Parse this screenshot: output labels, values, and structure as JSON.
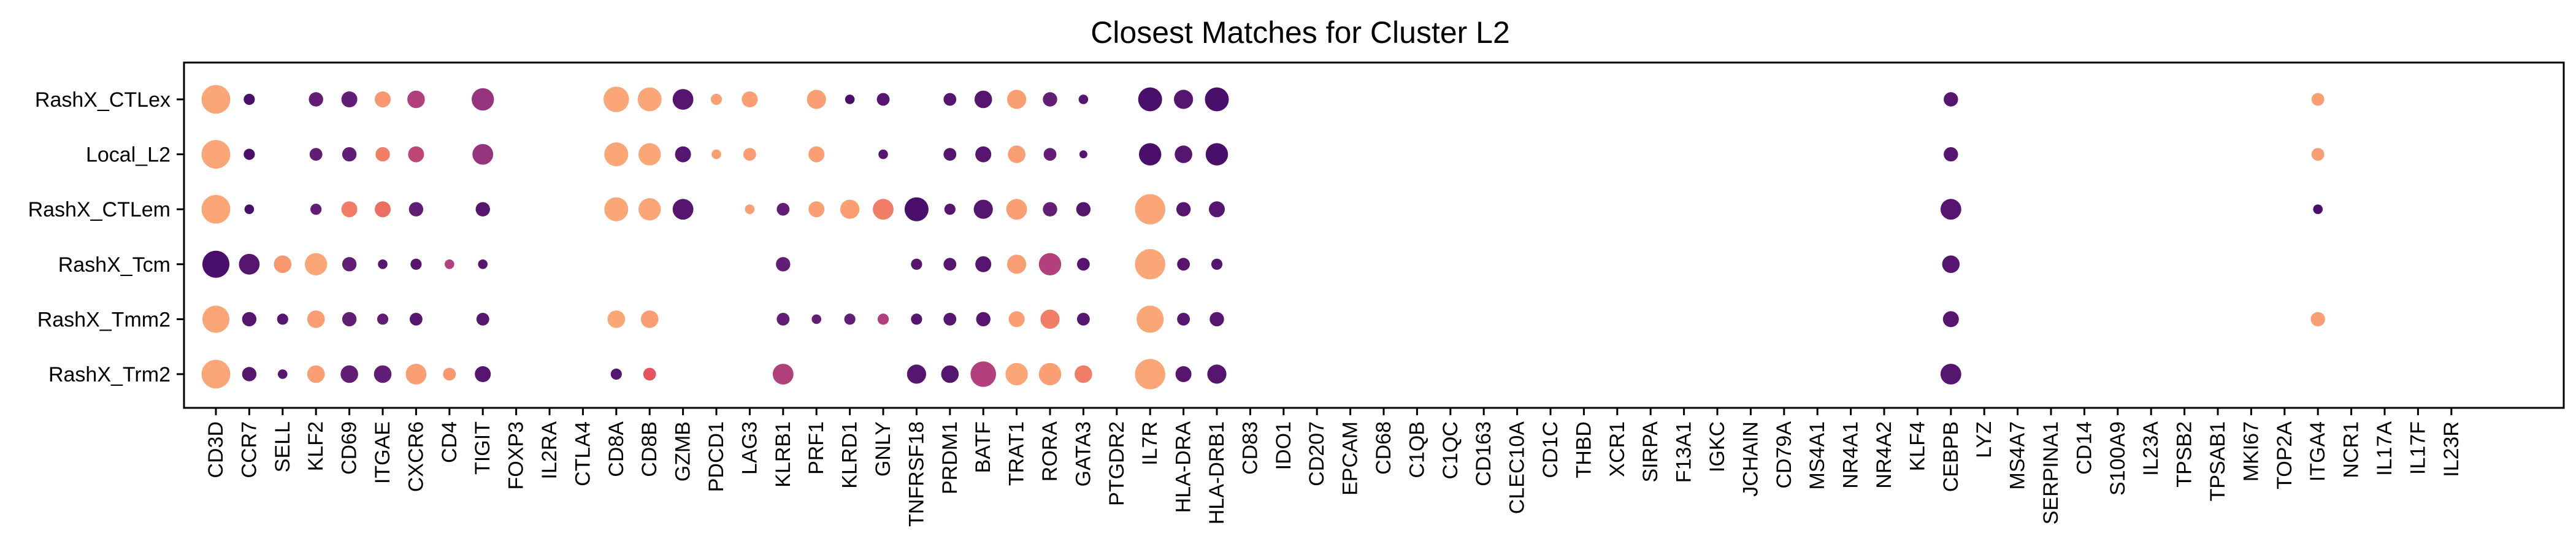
{
  "chart_data": {
    "type": "dotplot",
    "title": "Closest Matches for Cluster L2",
    "xlabel": "",
    "ylabel": "",
    "rows": [
      "RashX_CTLex",
      "Local_L2",
      "RashX_CTLem",
      "RashX_Tcm",
      "RashX_Tmm2",
      "RashX_Trm2"
    ],
    "columns": [
      "CD3D",
      "CCR7",
      "SELL",
      "KLF2",
      "CD69",
      "ITGAE",
      "CXCR6",
      "CD4",
      "TIGIT",
      "FOXP3",
      "IL2RA",
      "CTLA4",
      "CD8A",
      "CD8B",
      "GZMB",
      "PDCD1",
      "LAG3",
      "KLRB1",
      "PRF1",
      "KLRD1",
      "GNLY",
      "TNFRSF18",
      "PRDM1",
      "BATF",
      "TRAT1",
      "RORA",
      "GATA3",
      "PTGDR2",
      "IL7R",
      "HLA-DRA",
      "HLA-DRB1",
      "CD83",
      "IDO1",
      "CD207",
      "EPCAM",
      "CD68",
      "C1QB",
      "C1QC",
      "CD163",
      "CLEC10A",
      "CD1C",
      "THBD",
      "XCR1",
      "SIRPA",
      "F13A1",
      "IGKC",
      "JCHAIN",
      "CD79A",
      "MS4A1",
      "NR4A1",
      "NR4A2",
      "KLF4",
      "CEBPB",
      "LYZ",
      "MS4A7",
      "SERPINA1",
      "CD14",
      "S100A9",
      "IL23A",
      "TPSB2",
      "TPSAB1",
      "MKI67",
      "TOP2A",
      "ITGA4",
      "NCR1",
      "IL17A",
      "IL17F",
      "IL23R"
    ],
    "size_scale": "fraction of cells expressing (relative dot size, 0-1)",
    "color_scale": "mean expression (0 = dark purple, 1 = light orange)",
    "colormap": [
      "#4a0f6b",
      "#7a2a7e",
      "#b2407c",
      "#e5545e",
      "#f58a68",
      "#fba676"
    ],
    "points": [
      {
        "row": "RashX_CTLex",
        "gene": "CD3D",
        "size": 0.9,
        "color": 1.0
      },
      {
        "row": "RashX_CTLex",
        "gene": "CCR7",
        "size": 0.35,
        "color": 0.0
      },
      {
        "row": "RashX_CTLex",
        "gene": "KLF2",
        "size": 0.45,
        "color": 0.1
      },
      {
        "row": "RashX_CTLex",
        "gene": "CD69",
        "size": 0.5,
        "color": 0.1
      },
      {
        "row": "RashX_CTLex",
        "gene": "ITGAE",
        "size": 0.5,
        "color": 0.9
      },
      {
        "row": "RashX_CTLex",
        "gene": "CXCR6",
        "size": 0.55,
        "color": 0.4
      },
      {
        "row": "RashX_CTLex",
        "gene": "TIGIT",
        "size": 0.7,
        "color": 0.3
      },
      {
        "row": "RashX_CTLex",
        "gene": "CD8A",
        "size": 0.8,
        "color": 1.0
      },
      {
        "row": "RashX_CTLex",
        "gene": "CD8B",
        "size": 0.75,
        "color": 1.0
      },
      {
        "row": "RashX_CTLex",
        "gene": "GZMB",
        "size": 0.65,
        "color": 0.05
      },
      {
        "row": "RashX_CTLex",
        "gene": "PDCD1",
        "size": 0.35,
        "color": 0.95
      },
      {
        "row": "RashX_CTLex",
        "gene": "LAG3",
        "size": 0.5,
        "color": 0.95
      },
      {
        "row": "RashX_CTLex",
        "gene": "PRF1",
        "size": 0.6,
        "color": 0.95
      },
      {
        "row": "RashX_CTLex",
        "gene": "KLRD1",
        "size": 0.3,
        "color": 0.0
      },
      {
        "row": "RashX_CTLex",
        "gene": "GNLY",
        "size": 0.4,
        "color": 0.05
      },
      {
        "row": "RashX_CTLex",
        "gene": "PRDM1",
        "size": 0.4,
        "color": 0.05
      },
      {
        "row": "RashX_CTLex",
        "gene": "BATF",
        "size": 0.55,
        "color": 0.05
      },
      {
        "row": "RashX_CTLex",
        "gene": "TRAT1",
        "size": 0.6,
        "color": 0.95
      },
      {
        "row": "RashX_CTLex",
        "gene": "RORA",
        "size": 0.45,
        "color": 0.1
      },
      {
        "row": "RashX_CTLex",
        "gene": "GATA3",
        "size": 0.3,
        "color": 0.05
      },
      {
        "row": "RashX_CTLex",
        "gene": "IL7R",
        "size": 0.75,
        "color": 0.0
      },
      {
        "row": "RashX_CTLex",
        "gene": "HLA-DRA",
        "size": 0.6,
        "color": 0.05
      },
      {
        "row": "RashX_CTLex",
        "gene": "HLA-DRB1",
        "size": 0.75,
        "color": 0.0
      },
      {
        "row": "RashX_CTLex",
        "gene": "CEBPB",
        "size": 0.45,
        "color": 0.05
      },
      {
        "row": "RashX_CTLex",
        "gene": "ITGA4",
        "size": 0.4,
        "color": 0.95
      },
      {
        "row": "Local_L2",
        "gene": "CD3D",
        "size": 0.9,
        "color": 1.0
      },
      {
        "row": "Local_L2",
        "gene": "CCR7",
        "size": 0.35,
        "color": 0.0
      },
      {
        "row": "Local_L2",
        "gene": "KLF2",
        "size": 0.4,
        "color": 0.1
      },
      {
        "row": "Local_L2",
        "gene": "CD69",
        "size": 0.45,
        "color": 0.1
      },
      {
        "row": "Local_L2",
        "gene": "ITGAE",
        "size": 0.45,
        "color": 0.75
      },
      {
        "row": "Local_L2",
        "gene": "CXCR6",
        "size": 0.5,
        "color": 0.45
      },
      {
        "row": "Local_L2",
        "gene": "TIGIT",
        "size": 0.65,
        "color": 0.3
      },
      {
        "row": "Local_L2",
        "gene": "CD8A",
        "size": 0.75,
        "color": 1.0
      },
      {
        "row": "Local_L2",
        "gene": "CD8B",
        "size": 0.7,
        "color": 1.0
      },
      {
        "row": "Local_L2",
        "gene": "GZMB",
        "size": 0.5,
        "color": 0.05
      },
      {
        "row": "Local_L2",
        "gene": "PDCD1",
        "size": 0.3,
        "color": 0.95
      },
      {
        "row": "Local_L2",
        "gene": "LAG3",
        "size": 0.4,
        "color": 0.95
      },
      {
        "row": "Local_L2",
        "gene": "PRF1",
        "size": 0.5,
        "color": 0.95
      },
      {
        "row": "Local_L2",
        "gene": "GNLY",
        "size": 0.3,
        "color": 0.05
      },
      {
        "row": "Local_L2",
        "gene": "PRDM1",
        "size": 0.4,
        "color": 0.05
      },
      {
        "row": "Local_L2",
        "gene": "BATF",
        "size": 0.5,
        "color": 0.05
      },
      {
        "row": "Local_L2",
        "gene": "TRAT1",
        "size": 0.55,
        "color": 0.95
      },
      {
        "row": "Local_L2",
        "gene": "RORA",
        "size": 0.4,
        "color": 0.1
      },
      {
        "row": "Local_L2",
        "gene": "GATA3",
        "size": 0.25,
        "color": 0.05
      },
      {
        "row": "Local_L2",
        "gene": "IL7R",
        "size": 0.7,
        "color": 0.0
      },
      {
        "row": "Local_L2",
        "gene": "HLA-DRA",
        "size": 0.55,
        "color": 0.05
      },
      {
        "row": "Local_L2",
        "gene": "HLA-DRB1",
        "size": 0.7,
        "color": 0.0
      },
      {
        "row": "Local_L2",
        "gene": "CEBPB",
        "size": 0.45,
        "color": 0.05
      },
      {
        "row": "Local_L2",
        "gene": "ITGA4",
        "size": 0.4,
        "color": 0.95
      },
      {
        "row": "RashX_CTLem",
        "gene": "CD3D",
        "size": 0.9,
        "color": 1.0
      },
      {
        "row": "RashX_CTLem",
        "gene": "CCR7",
        "size": 0.3,
        "color": 0.0
      },
      {
        "row": "RashX_CTLem",
        "gene": "KLF2",
        "size": 0.35,
        "color": 0.1
      },
      {
        "row": "RashX_CTLem",
        "gene": "CD69",
        "size": 0.5,
        "color": 0.75
      },
      {
        "row": "RashX_CTLem",
        "gene": "ITGAE",
        "size": 0.5,
        "color": 0.7
      },
      {
        "row": "RashX_CTLem",
        "gene": "CXCR6",
        "size": 0.45,
        "color": 0.1
      },
      {
        "row": "RashX_CTLem",
        "gene": "TIGIT",
        "size": 0.45,
        "color": 0.05
      },
      {
        "row": "RashX_CTLem",
        "gene": "CD8A",
        "size": 0.75,
        "color": 1.0
      },
      {
        "row": "RashX_CTLem",
        "gene": "CD8B",
        "size": 0.7,
        "color": 1.0
      },
      {
        "row": "RashX_CTLem",
        "gene": "GZMB",
        "size": 0.65,
        "color": 0.05
      },
      {
        "row": "RashX_CTLem",
        "gene": "LAG3",
        "size": 0.3,
        "color": 0.95
      },
      {
        "row": "RashX_CTLem",
        "gene": "KLRB1",
        "size": 0.4,
        "color": 0.1
      },
      {
        "row": "RashX_CTLem",
        "gene": "PRF1",
        "size": 0.5,
        "color": 0.95
      },
      {
        "row": "RashX_CTLem",
        "gene": "KLRD1",
        "size": 0.6,
        "color": 0.95
      },
      {
        "row": "RashX_CTLem",
        "gene": "GNLY",
        "size": 0.65,
        "color": 0.75
      },
      {
        "row": "RashX_CTLem",
        "gene": "TNFRSF18",
        "size": 0.75,
        "color": 0.0
      },
      {
        "row": "RashX_CTLem",
        "gene": "PRDM1",
        "size": 0.35,
        "color": 0.05
      },
      {
        "row": "RashX_CTLem",
        "gene": "BATF",
        "size": 0.6,
        "color": 0.05
      },
      {
        "row": "RashX_CTLem",
        "gene": "TRAT1",
        "size": 0.65,
        "color": 0.95
      },
      {
        "row": "RashX_CTLem",
        "gene": "RORA",
        "size": 0.45,
        "color": 0.1
      },
      {
        "row": "RashX_CTLem",
        "gene": "GATA3",
        "size": 0.45,
        "color": 0.05
      },
      {
        "row": "RashX_CTLem",
        "gene": "IL7R",
        "size": 0.95,
        "color": 1.0
      },
      {
        "row": "RashX_CTLem",
        "gene": "HLA-DRA",
        "size": 0.45,
        "color": 0.05
      },
      {
        "row": "RashX_CTLem",
        "gene": "HLA-DRB1",
        "size": 0.5,
        "color": 0.05
      },
      {
        "row": "RashX_CTLem",
        "gene": "CEBPB",
        "size": 0.65,
        "color": 0.05
      },
      {
        "row": "RashX_CTLem",
        "gene": "ITGA4",
        "size": 0.3,
        "color": 0.0
      },
      {
        "row": "RashX_Tcm",
        "gene": "CD3D",
        "size": 0.85,
        "color": 0.0
      },
      {
        "row": "RashX_Tcm",
        "gene": "CCR7",
        "size": 0.65,
        "color": 0.05
      },
      {
        "row": "RashX_Tcm",
        "gene": "SELL",
        "size": 0.55,
        "color": 0.9
      },
      {
        "row": "RashX_Tcm",
        "gene": "KLF2",
        "size": 0.7,
        "color": 1.0
      },
      {
        "row": "RashX_Tcm",
        "gene": "CD69",
        "size": 0.45,
        "color": 0.1
      },
      {
        "row": "RashX_Tcm",
        "gene": "ITGAE",
        "size": 0.3,
        "color": 0.05
      },
      {
        "row": "RashX_Tcm",
        "gene": "CXCR6",
        "size": 0.35,
        "color": 0.05
      },
      {
        "row": "RashX_Tcm",
        "gene": "CD4",
        "size": 0.3,
        "color": 0.4
      },
      {
        "row": "RashX_Tcm",
        "gene": "TIGIT",
        "size": 0.3,
        "color": 0.05
      },
      {
        "row": "RashX_Tcm",
        "gene": "KLRB1",
        "size": 0.45,
        "color": 0.1
      },
      {
        "row": "RashX_Tcm",
        "gene": "TNFRSF18",
        "size": 0.35,
        "color": 0.05
      },
      {
        "row": "RashX_Tcm",
        "gene": "PRDM1",
        "size": 0.4,
        "color": 0.05
      },
      {
        "row": "RashX_Tcm",
        "gene": "BATF",
        "size": 0.5,
        "color": 0.05
      },
      {
        "row": "RashX_Tcm",
        "gene": "TRAT1",
        "size": 0.6,
        "color": 0.95
      },
      {
        "row": "RashX_Tcm",
        "gene": "RORA",
        "size": 0.7,
        "color": 0.4
      },
      {
        "row": "RashX_Tcm",
        "gene": "GATA3",
        "size": 0.4,
        "color": 0.05
      },
      {
        "row": "RashX_Tcm",
        "gene": "IL7R",
        "size": 0.95,
        "color": 1.0
      },
      {
        "row": "RashX_Tcm",
        "gene": "HLA-DRA",
        "size": 0.4,
        "color": 0.05
      },
      {
        "row": "RashX_Tcm",
        "gene": "HLA-DRB1",
        "size": 0.35,
        "color": 0.05
      },
      {
        "row": "RashX_Tcm",
        "gene": "CEBPB",
        "size": 0.55,
        "color": 0.05
      },
      {
        "row": "RashX_Tmm2",
        "gene": "CD3D",
        "size": 0.85,
        "color": 1.0
      },
      {
        "row": "RashX_Tmm2",
        "gene": "CCR7",
        "size": 0.45,
        "color": 0.05
      },
      {
        "row": "RashX_Tmm2",
        "gene": "SELL",
        "size": 0.35,
        "color": 0.05
      },
      {
        "row": "RashX_Tmm2",
        "gene": "KLF2",
        "size": 0.55,
        "color": 0.95
      },
      {
        "row": "RashX_Tmm2",
        "gene": "CD69",
        "size": 0.45,
        "color": 0.1
      },
      {
        "row": "RashX_Tmm2",
        "gene": "ITGAE",
        "size": 0.35,
        "color": 0.1
      },
      {
        "row": "RashX_Tmm2",
        "gene": "CXCR6",
        "size": 0.4,
        "color": 0.05
      },
      {
        "row": "RashX_Tmm2",
        "gene": "TIGIT",
        "size": 0.4,
        "color": 0.05
      },
      {
        "row": "RashX_Tmm2",
        "gene": "CD8A",
        "size": 0.55,
        "color": 1.0
      },
      {
        "row": "RashX_Tmm2",
        "gene": "CD8B",
        "size": 0.55,
        "color": 0.95
      },
      {
        "row": "RashX_Tmm2",
        "gene": "KLRB1",
        "size": 0.4,
        "color": 0.1
      },
      {
        "row": "RashX_Tmm2",
        "gene": "PRF1",
        "size": 0.3,
        "color": 0.1
      },
      {
        "row": "RashX_Tmm2",
        "gene": "KLRD1",
        "size": 0.35,
        "color": 0.1
      },
      {
        "row": "RashX_Tmm2",
        "gene": "GNLY",
        "size": 0.35,
        "color": 0.4
      },
      {
        "row": "RashX_Tmm2",
        "gene": "TNFRSF18",
        "size": 0.35,
        "color": 0.05
      },
      {
        "row": "RashX_Tmm2",
        "gene": "PRDM1",
        "size": 0.4,
        "color": 0.05
      },
      {
        "row": "RashX_Tmm2",
        "gene": "BATF",
        "size": 0.45,
        "color": 0.05
      },
      {
        "row": "RashX_Tmm2",
        "gene": "TRAT1",
        "size": 0.5,
        "color": 0.95
      },
      {
        "row": "RashX_Tmm2",
        "gene": "RORA",
        "size": 0.6,
        "color": 0.75
      },
      {
        "row": "RashX_Tmm2",
        "gene": "GATA3",
        "size": 0.4,
        "color": 0.05
      },
      {
        "row": "RashX_Tmm2",
        "gene": "IL7R",
        "size": 0.85,
        "color": 1.0
      },
      {
        "row": "RashX_Tmm2",
        "gene": "HLA-DRA",
        "size": 0.4,
        "color": 0.05
      },
      {
        "row": "RashX_Tmm2",
        "gene": "HLA-DRB1",
        "size": 0.45,
        "color": 0.05
      },
      {
        "row": "RashX_Tmm2",
        "gene": "CEBPB",
        "size": 0.5,
        "color": 0.05
      },
      {
        "row": "RashX_Tmm2",
        "gene": "ITGA4",
        "size": 0.45,
        "color": 0.95
      },
      {
        "row": "RashX_Trm2",
        "gene": "CD3D",
        "size": 0.9,
        "color": 1.0
      },
      {
        "row": "RashX_Trm2",
        "gene": "CCR7",
        "size": 0.45,
        "color": 0.05
      },
      {
        "row": "RashX_Trm2",
        "gene": "SELL",
        "size": 0.3,
        "color": 0.05
      },
      {
        "row": "RashX_Trm2",
        "gene": "KLF2",
        "size": 0.55,
        "color": 0.95
      },
      {
        "row": "RashX_Trm2",
        "gene": "CD69",
        "size": 0.55,
        "color": 0.1
      },
      {
        "row": "RashX_Trm2",
        "gene": "ITGAE",
        "size": 0.55,
        "color": 0.1
      },
      {
        "row": "RashX_Trm2",
        "gene": "CXCR6",
        "size": 0.65,
        "color": 0.95
      },
      {
        "row": "RashX_Trm2",
        "gene": "CD4",
        "size": 0.4,
        "color": 0.9
      },
      {
        "row": "RashX_Trm2",
        "gene": "TIGIT",
        "size": 0.5,
        "color": 0.05
      },
      {
        "row": "RashX_Trm2",
        "gene": "CD8A",
        "size": 0.35,
        "color": 0.05
      },
      {
        "row": "RashX_Trm2",
        "gene": "CD8B",
        "size": 0.4,
        "color": 0.6
      },
      {
        "row": "RashX_Trm2",
        "gene": "KLRB1",
        "size": 0.65,
        "color": 0.4
      },
      {
        "row": "RashX_Trm2",
        "gene": "TNFRSF18",
        "size": 0.6,
        "color": 0.05
      },
      {
        "row": "RashX_Trm2",
        "gene": "PRDM1",
        "size": 0.55,
        "color": 0.05
      },
      {
        "row": "RashX_Trm2",
        "gene": "BATF",
        "size": 0.8,
        "color": 0.4
      },
      {
        "row": "RashX_Trm2",
        "gene": "TRAT1",
        "size": 0.7,
        "color": 1.0
      },
      {
        "row": "RashX_Trm2",
        "gene": "RORA",
        "size": 0.7,
        "color": 0.95
      },
      {
        "row": "RashX_Trm2",
        "gene": "GATA3",
        "size": 0.55,
        "color": 0.75
      },
      {
        "row": "RashX_Trm2",
        "gene": "IL7R",
        "size": 0.95,
        "color": 1.0
      },
      {
        "row": "RashX_Trm2",
        "gene": "HLA-DRA",
        "size": 0.5,
        "color": 0.05
      },
      {
        "row": "RashX_Trm2",
        "gene": "HLA-DRB1",
        "size": 0.6,
        "color": 0.05
      },
      {
        "row": "RashX_Trm2",
        "gene": "CEBPB",
        "size": 0.65,
        "color": 0.05
      }
    ]
  }
}
